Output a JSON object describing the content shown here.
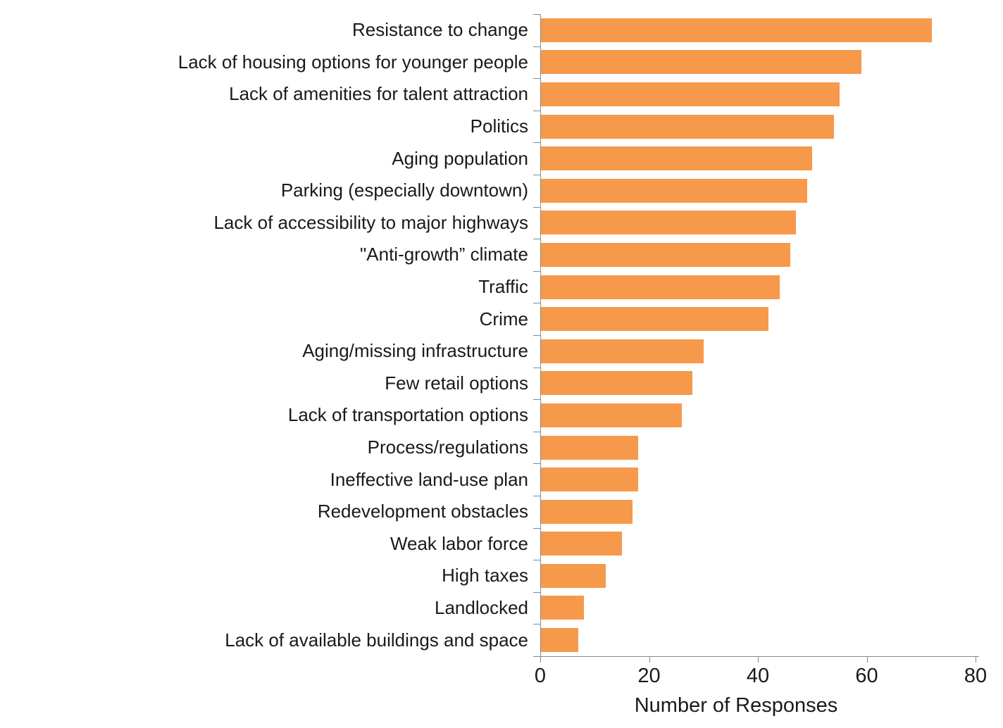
{
  "chart_data": {
    "type": "bar",
    "orientation": "horizontal",
    "title": "",
    "xlabel": "Number of Responses",
    "ylabel": "",
    "xlim": [
      0,
      80
    ],
    "x_ticks": [
      "0",
      "20",
      "40",
      "60",
      "80"
    ],
    "grid": false,
    "legend": false,
    "bar_color": "#F6994B",
    "axis_color": "#898989",
    "text_color": "#1a1a1a",
    "categories": [
      "Resistance to change",
      "Lack of housing options for younger people",
      "Lack of amenities for talent attraction",
      "Politics",
      "Aging population",
      "Parking (especially downtown)",
      "Lack of accessibility to major highways",
      "\"Anti-growth” climate",
      "Traffic",
      "Crime",
      "Aging/missing infrastructure",
      "Few retail options",
      "Lack of transportation options",
      "Process/regulations",
      "Ineffective land-use plan",
      "Redevelopment obstacles",
      "Weak labor force",
      "High taxes",
      "Landlocked",
      "Lack of available buildings and space"
    ],
    "values": [
      72,
      59,
      55,
      54,
      50,
      49,
      47,
      46,
      44,
      42,
      30,
      28,
      26,
      18,
      18,
      17,
      15,
      12,
      8,
      7
    ]
  }
}
